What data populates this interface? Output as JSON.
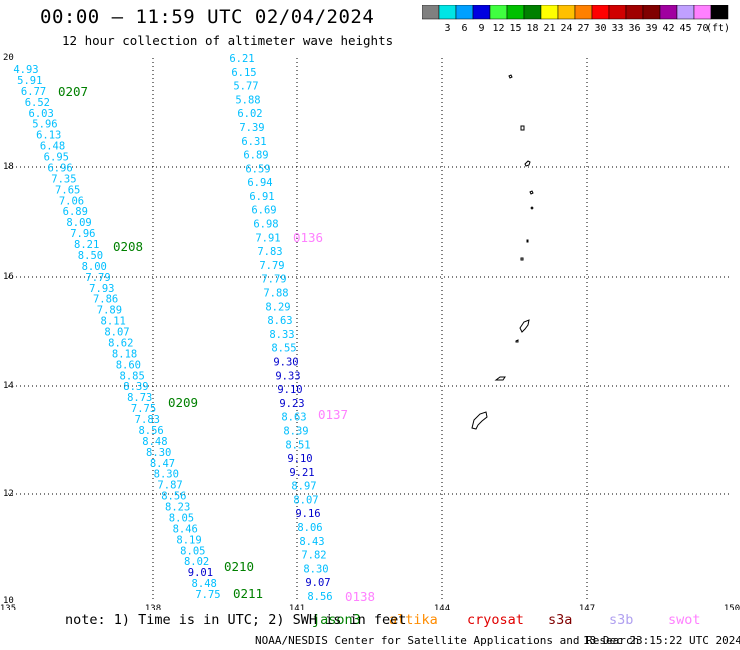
{
  "title": "00:00 – 11:59 UTC 02/04/2024",
  "subtitle": "12 hour collection of altimeter wave heights",
  "colorbar": {
    "labels": [
      "3",
      "6",
      "9",
      "12",
      "15",
      "18",
      "21",
      "24",
      "27",
      "30",
      "33",
      "36",
      "39",
      "42",
      "45",
      "70"
    ],
    "unit": "(ft)",
    "colors": [
      "#808080",
      "#00e5e5",
      "#00a0ff",
      "#0000e0",
      "#40ff40",
      "#00c000",
      "#008000",
      "#ffff00",
      "#ffc000",
      "#ff8000",
      "#ff0000",
      "#d00000",
      "#a00000",
      "#800000",
      "#a000a0",
      "#c0a0ff",
      "#ff80ff",
      "#000000"
    ]
  },
  "axes": {
    "x_ticks": [
      "135",
      "138",
      "141",
      "144",
      "147",
      "150"
    ],
    "y_ticks": [
      "20",
      "18",
      "16",
      "14",
      "12",
      "10"
    ]
  },
  "passes": [
    {
      "label": "0207",
      "color": "#008000"
    },
    {
      "label": "0208",
      "color": "#008000"
    },
    {
      "label": "0209",
      "color": "#008000"
    },
    {
      "label": "0210",
      "color": "#008000"
    },
    {
      "label": "0211",
      "color": "#008000"
    },
    {
      "label": "0136",
      "color": "#ff80ff"
    },
    {
      "label": "0137",
      "color": "#ff80ff"
    },
    {
      "label": "0138",
      "color": "#ff80ff"
    }
  ],
  "track_a": [
    {
      "v": "4.93",
      "c": "#00bfff"
    },
    {
      "v": "5.91",
      "c": "#00bfff"
    },
    {
      "v": "6.77",
      "c": "#00bfff"
    },
    {
      "v": "6.52",
      "c": "#00bfff"
    },
    {
      "v": "6.03",
      "c": "#00bfff"
    },
    {
      "v": "5.96",
      "c": "#00bfff"
    },
    {
      "v": "6.13",
      "c": "#00bfff"
    },
    {
      "v": "6.48",
      "c": "#00bfff"
    },
    {
      "v": "6.95",
      "c": "#00bfff"
    },
    {
      "v": "6.96",
      "c": "#00bfff"
    },
    {
      "v": "7.35",
      "c": "#00bfff"
    },
    {
      "v": "7.65",
      "c": "#00bfff"
    },
    {
      "v": "7.06",
      "c": "#00bfff"
    },
    {
      "v": "6.89",
      "c": "#00bfff"
    },
    {
      "v": "8.09",
      "c": "#00bfff"
    },
    {
      "v": "7.96",
      "c": "#00bfff"
    },
    {
      "v": "8.21",
      "c": "#00bfff"
    },
    {
      "v": "8.50",
      "c": "#00bfff"
    },
    {
      "v": "8.00",
      "c": "#00bfff"
    },
    {
      "v": "7.79",
      "c": "#00bfff"
    },
    {
      "v": "7.93",
      "c": "#00bfff"
    },
    {
      "v": "7.86",
      "c": "#00bfff"
    },
    {
      "v": "7.89",
      "c": "#00bfff"
    },
    {
      "v": "8.11",
      "c": "#00bfff"
    },
    {
      "v": "8.07",
      "c": "#00bfff"
    },
    {
      "v": "8.62",
      "c": "#00bfff"
    },
    {
      "v": "8.18",
      "c": "#00bfff"
    },
    {
      "v": "8.60",
      "c": "#00bfff"
    },
    {
      "v": "8.85",
      "c": "#00bfff"
    },
    {
      "v": "8.39",
      "c": "#00bfff"
    },
    {
      "v": "8.73",
      "c": "#00bfff"
    },
    {
      "v": "7.75",
      "c": "#00bfff"
    },
    {
      "v": "7.83",
      "c": "#00bfff"
    },
    {
      "v": "8.56",
      "c": "#00bfff"
    },
    {
      "v": "8.48",
      "c": "#00bfff"
    },
    {
      "v": "8.30",
      "c": "#00bfff"
    },
    {
      "v": "8.47",
      "c": "#00bfff"
    },
    {
      "v": "8.30",
      "c": "#00bfff"
    },
    {
      "v": "7.87",
      "c": "#00bfff"
    },
    {
      "v": "8.56",
      "c": "#00bfff"
    },
    {
      "v": "8.23",
      "c": "#00bfff"
    },
    {
      "v": "8.05",
      "c": "#00bfff"
    },
    {
      "v": "8.46",
      "c": "#00bfff"
    },
    {
      "v": "8.19",
      "c": "#00bfff"
    },
    {
      "v": "8.05",
      "c": "#00bfff"
    },
    {
      "v": "8.02",
      "c": "#00bfff"
    },
    {
      "v": "9.01",
      "c": "#0000cd"
    },
    {
      "v": "8.48",
      "c": "#00bfff"
    },
    {
      "v": "7.75",
      "c": "#00bfff"
    }
  ],
  "track_b": [
    {
      "v": "6.21",
      "c": "#00bfff"
    },
    {
      "v": "6.15",
      "c": "#00bfff"
    },
    {
      "v": "5.77",
      "c": "#00bfff"
    },
    {
      "v": "5.88",
      "c": "#00bfff"
    },
    {
      "v": "6.02",
      "c": "#00bfff"
    },
    {
      "v": "7.39",
      "c": "#00bfff"
    },
    {
      "v": "6.31",
      "c": "#00bfff"
    },
    {
      "v": "6.89",
      "c": "#00bfff"
    },
    {
      "v": "6.59",
      "c": "#00bfff"
    },
    {
      "v": "6.94",
      "c": "#00bfff"
    },
    {
      "v": "6.91",
      "c": "#00bfff"
    },
    {
      "v": "6.69",
      "c": "#00bfff"
    },
    {
      "v": "6.98",
      "c": "#00bfff"
    },
    {
      "v": "7.91",
      "c": "#00bfff"
    },
    {
      "v": "7.83",
      "c": "#00bfff"
    },
    {
      "v": "7.79",
      "c": "#00bfff"
    },
    {
      "v": "7.79",
      "c": "#00bfff"
    },
    {
      "v": "7.88",
      "c": "#00bfff"
    },
    {
      "v": "8.29",
      "c": "#00bfff"
    },
    {
      "v": "8.63",
      "c": "#00bfff"
    },
    {
      "v": "8.33",
      "c": "#00bfff"
    },
    {
      "v": "8.55",
      "c": "#00bfff"
    },
    {
      "v": "9.30",
      "c": "#0000cd"
    },
    {
      "v": "9.33",
      "c": "#0000cd"
    },
    {
      "v": "9.10",
      "c": "#0000cd"
    },
    {
      "v": "9.23",
      "c": "#0000cd"
    },
    {
      "v": "8.63",
      "c": "#00bfff"
    },
    {
      "v": "8.39",
      "c": "#00bfff"
    },
    {
      "v": "8.51",
      "c": "#00bfff"
    },
    {
      "v": "9.10",
      "c": "#0000cd"
    },
    {
      "v": "9.21",
      "c": "#0000cd"
    },
    {
      "v": "8.97",
      "c": "#00bfff"
    },
    {
      "v": "8.07",
      "c": "#00bfff"
    },
    {
      "v": "9.16",
      "c": "#0000cd"
    },
    {
      "v": "8.06",
      "c": "#00bfff"
    },
    {
      "v": "8.43",
      "c": "#00bfff"
    },
    {
      "v": "7.82",
      "c": "#00bfff"
    },
    {
      "v": "8.30",
      "c": "#00bfff"
    },
    {
      "v": "9.07",
      "c": "#0000cd"
    },
    {
      "v": "8.56",
      "c": "#00bfff"
    }
  ],
  "satellites": [
    {
      "name": "jason3",
      "color": "#008000"
    },
    {
      "name": "altika",
      "color": "#ff8c00"
    },
    {
      "name": "cryosat",
      "color": "#e00000"
    },
    {
      "name": "s3a",
      "color": "#800000"
    },
    {
      "name": "s3b",
      "color": "#b0a0f0"
    },
    {
      "name": "swot",
      "color": "#ff80ff"
    }
  ],
  "note": "note: 1) Time is in UTC; 2) SWH is in feet",
  "credit": "NOAA/NESDIS Center for Satellite Applications and Research",
  "generated": "13 Dec 23:15:22 UTC 2024"
}
